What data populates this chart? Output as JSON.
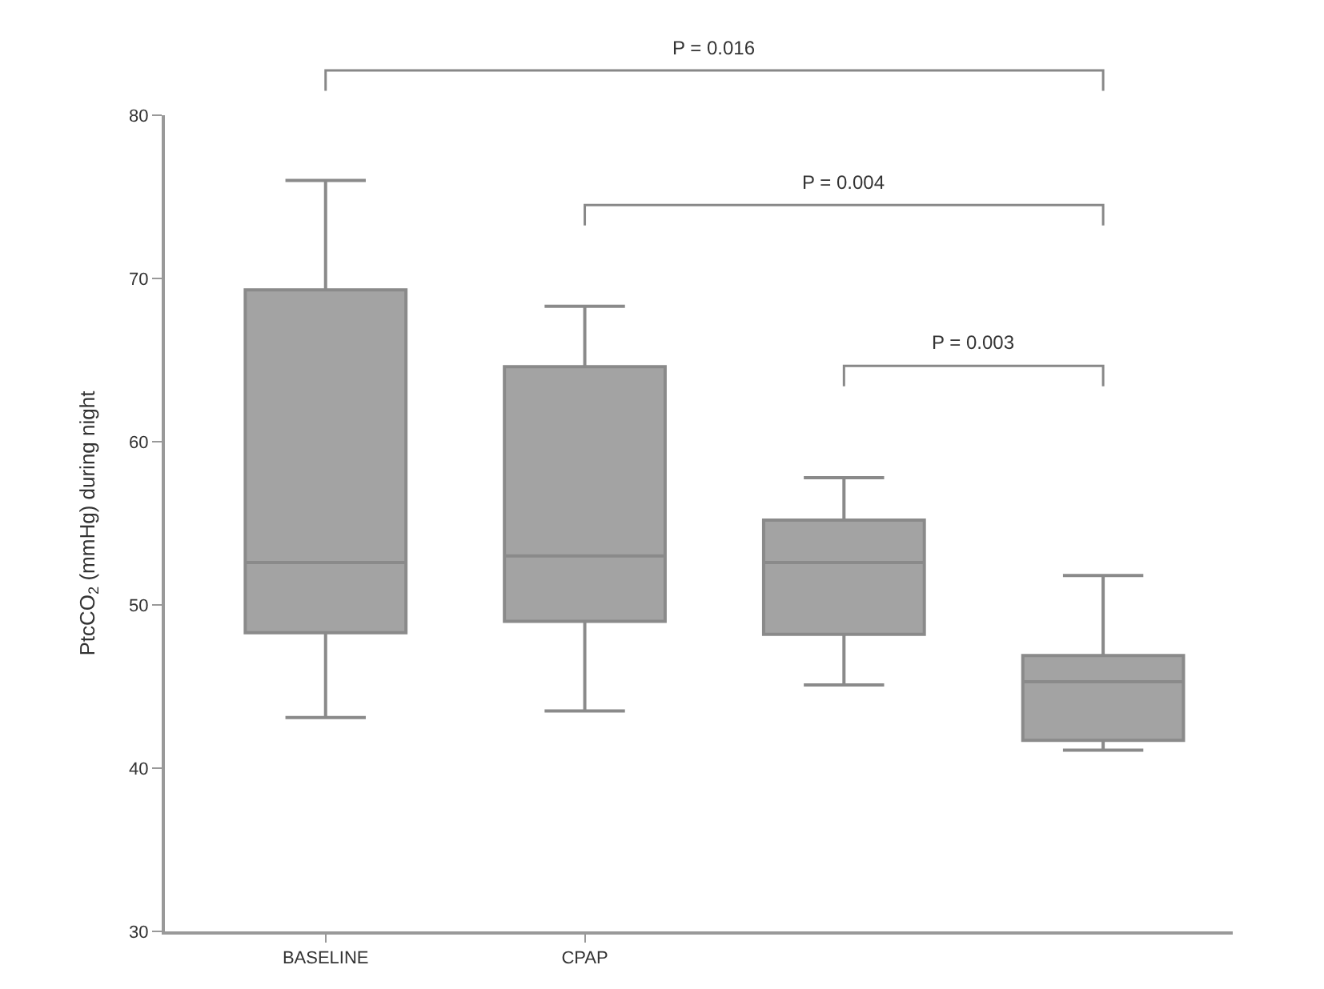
{
  "chart_data": {
    "type": "box",
    "ylabel": "PtcCO$_{2}$ (mmHg) during night",
    "categories": [
      "BASELINE",
      "CPAP",
      null,
      null
    ],
    "boxes": [
      {
        "low": 43.1,
        "q1": 48.3,
        "median": 52.6,
        "q3": 69.3,
        "high": 76.0
      },
      {
        "low": 43.5,
        "q1": 49.0,
        "median": 53.0,
        "q3": 64.6,
        "high": 68.3
      },
      {
        "low": 45.1,
        "q1": 48.2,
        "median": 52.6,
        "q3": 55.2,
        "high": 57.8
      },
      {
        "low": 41.1,
        "q1": 41.7,
        "median": 45.3,
        "q3": 46.9,
        "high": 51.8
      }
    ],
    "color": "#a3a3a3",
    "ylim": [
      30,
      80
    ],
    "yticks": [
      30,
      40,
      50,
      60,
      70,
      80
    ],
    "annotations": [
      "P = 0.016",
      "P = 0.004",
      "P = 0.003"
    ],
    "tick_labels": "xy"
  }
}
